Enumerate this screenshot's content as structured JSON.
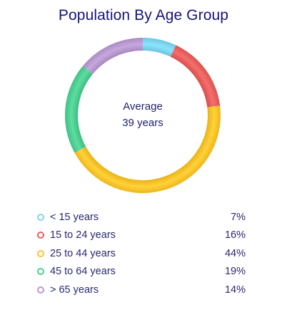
{
  "chart_data": {
    "type": "pie",
    "title": "Population By Age Group",
    "center_label": {
      "line1": "Average",
      "line2": "39 years"
    },
    "categories": [
      "< 15 years",
      "15 to 24 years",
      "25 to 44 years",
      "45 to 64 years",
      "> 65 years"
    ],
    "values": [
      7,
      16,
      44,
      19,
      14
    ],
    "value_labels": [
      "7%",
      "16%",
      "44%",
      "19%",
      "14%"
    ],
    "unit": "%",
    "colors": [
      "#7dd6ef",
      "#e8615e",
      "#fcc42b",
      "#4fcf92",
      "#b99ad0"
    ],
    "legend_position": "bottom"
  }
}
